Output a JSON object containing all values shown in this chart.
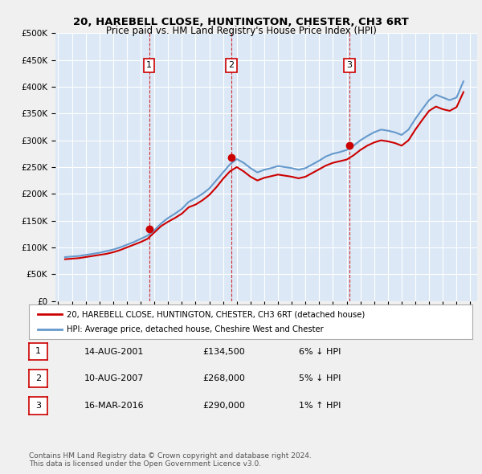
{
  "title": "20, HAREBELL CLOSE, HUNTINGTON, CHESTER, CH3 6RT",
  "subtitle": "Price paid vs. HM Land Registry's House Price Index (HPI)",
  "xlabel": "",
  "ylabel": "",
  "background_color": "#e8f0f8",
  "plot_bg_color": "#dce8f5",
  "grid_color": "#ffffff",
  "ylim": [
    0,
    500000
  ],
  "yticks": [
    0,
    50000,
    100000,
    150000,
    200000,
    250000,
    300000,
    350000,
    400000,
    450000,
    500000
  ],
  "ytick_labels": [
    "£0",
    "£50K",
    "£100K",
    "£150K",
    "£200K",
    "£250K",
    "£300K",
    "£350K",
    "£400K",
    "£450K",
    "£500K"
  ],
  "hpi_color": "#6699cc",
  "price_color": "#cc0000",
  "sales": [
    {
      "date": "2001-08-14",
      "price": 134500,
      "x": 2001.62,
      "label": "1"
    },
    {
      "date": "2007-08-10",
      "price": 268000,
      "x": 2007.61,
      "label": "2"
    },
    {
      "date": "2016-03-16",
      "price": 290000,
      "x": 2016.21,
      "label": "3"
    }
  ],
  "legend_line1": "20, HAREBELL CLOSE, HUNTINGTON, CHESTER, CH3 6RT (detached house)",
  "legend_line2": "HPI: Average price, detached house, Cheshire West and Chester",
  "table_rows": [
    {
      "num": "1",
      "date": "14-AUG-2001",
      "price": "£134,500",
      "hpi": "6% ↓ HPI"
    },
    {
      "num": "2",
      "date": "10-AUG-2007",
      "price": "£268,000",
      "hpi": "5% ↓ HPI"
    },
    {
      "num": "3",
      "date": "16-MAR-2016",
      "price": "£290,000",
      "hpi": "1% ↑ HPI"
    }
  ],
  "footnote": "Contains HM Land Registry data © Crown copyright and database right 2024.\nThis data is licensed under the Open Government Licence v3.0.",
  "hpi_data_x": [
    1995.5,
    1996.0,
    1996.5,
    1997.0,
    1997.5,
    1998.0,
    1998.5,
    1999.0,
    1999.5,
    2000.0,
    2000.5,
    2001.0,
    2001.5,
    2002.0,
    2002.5,
    2003.0,
    2003.5,
    2004.0,
    2004.5,
    2005.0,
    2005.5,
    2006.0,
    2006.5,
    2007.0,
    2007.5,
    2008.0,
    2008.5,
    2009.0,
    2009.5,
    2010.0,
    2010.5,
    2011.0,
    2011.5,
    2012.0,
    2012.5,
    2013.0,
    2013.5,
    2014.0,
    2014.5,
    2015.0,
    2015.5,
    2016.0,
    2016.5,
    2017.0,
    2017.5,
    2018.0,
    2018.5,
    2019.0,
    2019.5,
    2020.0,
    2020.5,
    2021.0,
    2021.5,
    2022.0,
    2022.5,
    2023.0,
    2023.5,
    2024.0,
    2024.5
  ],
  "hpi_data_y": [
    82000,
    83000,
    84000,
    86000,
    88000,
    90000,
    93000,
    96000,
    100000,
    105000,
    110000,
    116000,
    122000,
    132000,
    145000,
    155000,
    163000,
    172000,
    185000,
    192000,
    200000,
    210000,
    225000,
    240000,
    255000,
    265000,
    258000,
    248000,
    240000,
    245000,
    248000,
    252000,
    250000,
    248000,
    245000,
    248000,
    255000,
    262000,
    270000,
    275000,
    278000,
    282000,
    290000,
    300000,
    308000,
    315000,
    320000,
    318000,
    315000,
    310000,
    320000,
    340000,
    358000,
    375000,
    385000,
    380000,
    375000,
    380000,
    410000
  ],
  "price_data_x": [
    1995.5,
    1996.0,
    1996.5,
    1997.0,
    1997.5,
    1998.0,
    1998.5,
    1999.0,
    1999.5,
    2000.0,
    2000.5,
    2001.0,
    2001.5,
    2002.0,
    2002.5,
    2003.0,
    2003.5,
    2004.0,
    2004.5,
    2005.0,
    2005.5,
    2006.0,
    2006.5,
    2007.0,
    2007.5,
    2008.0,
    2008.5,
    2009.0,
    2009.5,
    2010.0,
    2010.5,
    2011.0,
    2011.5,
    2012.0,
    2012.5,
    2013.0,
    2013.5,
    2014.0,
    2014.5,
    2015.0,
    2015.5,
    2016.0,
    2016.5,
    2017.0,
    2017.5,
    2018.0,
    2018.5,
    2019.0,
    2019.5,
    2020.0,
    2020.5,
    2021.0,
    2021.5,
    2022.0,
    2022.5,
    2023.0,
    2023.5,
    2024.0,
    2024.5
  ],
  "price_data_y": [
    78000,
    79000,
    80000,
    82000,
    84000,
    86000,
    88000,
    91000,
    95000,
    100000,
    105000,
    110000,
    116000,
    128000,
    140000,
    148000,
    155000,
    163000,
    175000,
    180000,
    188000,
    198000,
    212000,
    228000,
    242000,
    250000,
    242000,
    232000,
    225000,
    230000,
    233000,
    236000,
    234000,
    232000,
    229000,
    232000,
    239000,
    246000,
    253000,
    258000,
    261000,
    264000,
    272000,
    282000,
    290000,
    296000,
    300000,
    298000,
    295000,
    290000,
    300000,
    320000,
    338000,
    355000,
    363000,
    358000,
    355000,
    362000,
    390000
  ],
  "xlim": [
    1994.8,
    2025.5
  ],
  "xticks": [
    1995,
    1996,
    1997,
    1998,
    1999,
    2000,
    2001,
    2002,
    2003,
    2004,
    2005,
    2006,
    2007,
    2008,
    2009,
    2010,
    2011,
    2012,
    2013,
    2014,
    2015,
    2016,
    2017,
    2018,
    2019,
    2020,
    2021,
    2022,
    2023,
    2024,
    2025
  ]
}
